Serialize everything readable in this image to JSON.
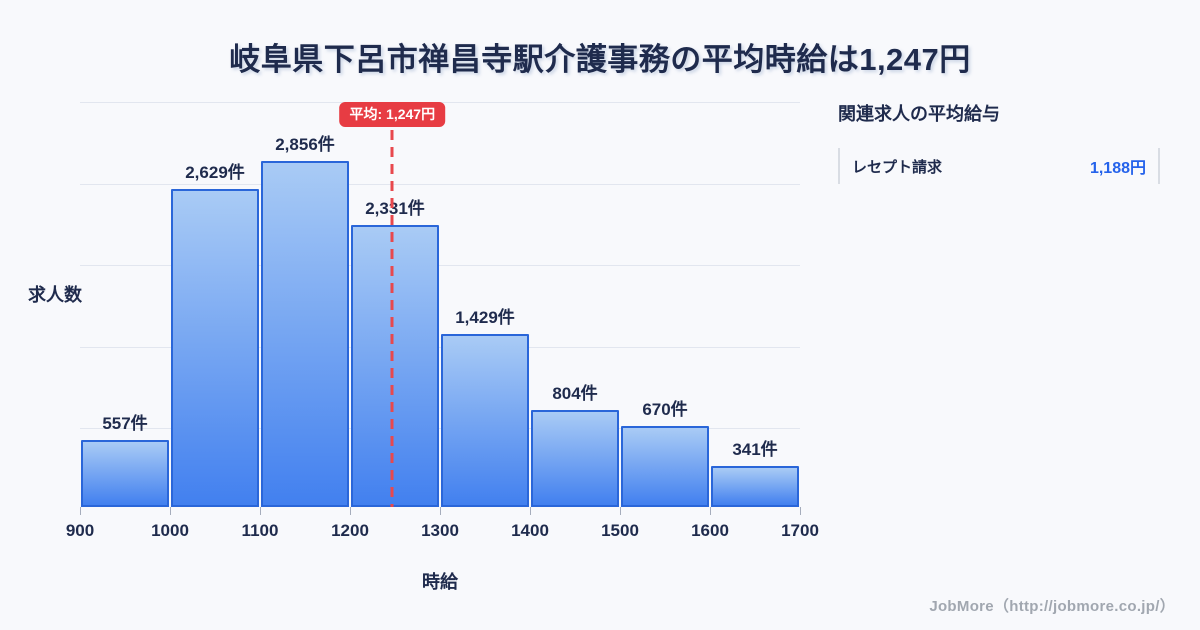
{
  "title": "岐阜県下呂市禅昌寺駅介護事務の平均時給は1,247円",
  "chart_data": {
    "type": "bar",
    "title": "岐阜県下呂市禅昌寺駅介護事務の平均時給は1,247円",
    "xlabel": "時給",
    "ylabel": "求人数",
    "bin_edges": [
      900,
      1000,
      1100,
      1200,
      1300,
      1400,
      1500,
      1600,
      1700
    ],
    "x_tick_labels": [
      "900",
      "1000",
      "1100",
      "1200",
      "1300",
      "1400",
      "1500",
      "1600",
      "1700"
    ],
    "values": [
      557,
      2629,
      2856,
      2331,
      1429,
      804,
      670,
      341
    ],
    "value_labels": [
      "557件",
      "2,629件",
      "2,856件",
      "2,331件",
      "1,429件",
      "804件",
      "670件",
      "341件"
    ],
    "ylim": [
      0,
      3343
    ],
    "grid": true,
    "legend": false,
    "mean_line": {
      "value": 1247,
      "label": "平均: 1,247円"
    }
  },
  "side_panel": {
    "heading": "関連求人の平均給与",
    "rows": [
      {
        "label": "レセプト請求",
        "value": "1,188円"
      }
    ]
  },
  "footer": {
    "credit": "JobMore（http://jobmore.co.jp/）"
  },
  "colors": {
    "background": "#f8f9fc",
    "title_text": "#1f2b4d",
    "bar_fill_top": "#a9cbf5",
    "bar_fill_bottom": "#4280ef",
    "bar_border": "#2a66d9",
    "grid_line": "#e2e6ef",
    "mean_red": "#e73c43",
    "mean_line_red": "#e8484d",
    "value_blue": "#2563eb",
    "footer_gray": "#a1a7b0"
  }
}
